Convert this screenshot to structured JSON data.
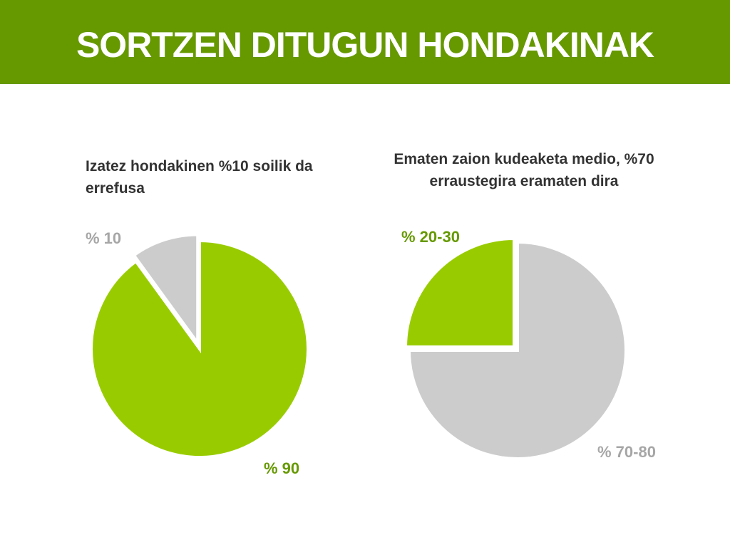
{
  "header": {
    "title": "SORTZEN DITUGUN HONDAKINAK"
  },
  "colors": {
    "header_bg": "#669900",
    "green": "#99CC00",
    "gray": "#CCCCCC",
    "gray_text": "#A6A6A6",
    "green_text": "#669900"
  },
  "chart_data": [
    {
      "type": "pie",
      "title": "Izatez hondakinen %10 soilik da errefusa",
      "slices": [
        {
          "label": "% 10",
          "value": 10,
          "color": "#CCCCCC"
        },
        {
          "label": "% 90",
          "value": 90,
          "color": "#99CC00"
        }
      ],
      "exploded": "% 10"
    },
    {
      "type": "pie",
      "title": "Ematen zaion kudeaketa medio, %70 erraustegira eramaten dira",
      "slices": [
        {
          "label": "% 20-30",
          "value": 25,
          "color": "#99CC00"
        },
        {
          "label": "% 70-80",
          "value": 75,
          "color": "#CCCCCC"
        }
      ],
      "exploded": "% 20-30"
    }
  ]
}
